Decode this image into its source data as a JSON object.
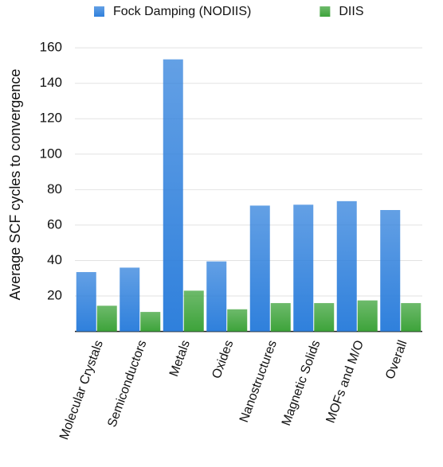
{
  "chart_data": {
    "type": "bar",
    "y_label": "Average SCF cycles to convergence",
    "categories": [
      "Molecular Crystals",
      "Semiconductors",
      "Metals",
      "Oxides",
      "Nanostructures",
      "Magnetic Solids",
      "MOFs and M/O",
      "Overall"
    ],
    "series": [
      {
        "name": "Fock Damping (NODIIS)",
        "color": "#2f80dc",
        "values": [
          33.5,
          36,
          153.5,
          39.5,
          71,
          71.5,
          73.5,
          68.5
        ]
      },
      {
        "name": "DIIS",
        "color": "#3da33a",
        "values": [
          14.5,
          11,
          23,
          12.5,
          16,
          16,
          17.5,
          16
        ]
      }
    ],
    "ylim": [
      0,
      165
    ],
    "yticks": [
      20,
      40,
      60,
      80,
      100,
      120,
      140,
      160
    ],
    "grid": true,
    "legend": "top"
  }
}
